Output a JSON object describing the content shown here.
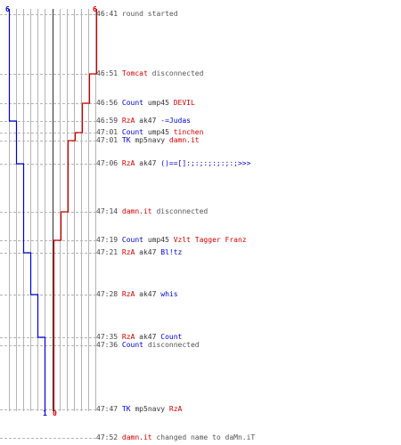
{
  "colors": {
    "blue": "#0000cc",
    "red": "#cc0000",
    "grey": "#444444",
    "grid": "#b4b4b4"
  },
  "score_markers": [
    {
      "id": "top-blue",
      "text": "6",
      "color": "#0000cc"
    },
    {
      "id": "top-red",
      "text": "6",
      "color": "#cc0000"
    },
    {
      "id": "bottom-blue",
      "text": "1",
      "color": "#0000cc"
    },
    {
      "id": "bottom-red",
      "text": "0",
      "color": "#cc0000"
    }
  ],
  "events": [
    {
      "time": "46:41",
      "parts": [
        {
          "text": "round started",
          "color": "#555555"
        }
      ]
    },
    {
      "time": "46:51",
      "parts": [
        {
          "text": "Tomcat",
          "color": "#cc0000"
        },
        {
          "text": " disconnected",
          "color": "#555555"
        }
      ]
    },
    {
      "time": "46:56",
      "parts": [
        {
          "text": "Count",
          "color": "#0000cc"
        },
        {
          "text": " ump45 ",
          "color": "#333333"
        },
        {
          "text": "DEVIL",
          "color": "#cc0000"
        }
      ]
    },
    {
      "time": "46:59",
      "parts": [
        {
          "text": "RzA",
          "color": "#cc0000"
        },
        {
          "text": " ak47 ",
          "color": "#333333"
        },
        {
          "text": "-=Judas",
          "color": "#0000cc"
        }
      ]
    },
    {
      "time": "47:01",
      "parts": [
        {
          "text": "Count",
          "color": "#0000cc"
        },
        {
          "text": " ump45 ",
          "color": "#333333"
        },
        {
          "text": "tinchen",
          "color": "#cc0000"
        }
      ]
    },
    {
      "time": "47:01",
      "parts": [
        {
          "text": "TK",
          "color": "#0000cc"
        },
        {
          "text": " mp5navy ",
          "color": "#333333"
        },
        {
          "text": "damn.it",
          "color": "#cc0000"
        }
      ]
    },
    {
      "time": "47:06",
      "parts": [
        {
          "text": "RzA",
          "color": "#cc0000"
        },
        {
          "text": " ak47 ",
          "color": "#333333"
        },
        {
          "text": "()==[]:;:;:;:;:;:;>>>",
          "color": "#0000cc"
        }
      ]
    },
    {
      "time": "47:14",
      "parts": [
        {
          "text": "damn.it",
          "color": "#cc0000"
        },
        {
          "text": " disconnected",
          "color": "#555555"
        }
      ]
    },
    {
      "time": "47:19",
      "parts": [
        {
          "text": "Count",
          "color": "#0000cc"
        },
        {
          "text": " ump45 ",
          "color": "#333333"
        },
        {
          "text": "Vzlt Tagger Franz",
          "color": "#cc0000"
        }
      ]
    },
    {
      "time": "47:21",
      "parts": [
        {
          "text": "RzA",
          "color": "#cc0000"
        },
        {
          "text": " ak47 ",
          "color": "#333333"
        },
        {
          "text": "Bl!tz",
          "color": "#0000cc"
        }
      ]
    },
    {
      "time": "47:28",
      "parts": [
        {
          "text": "RzA",
          "color": "#cc0000"
        },
        {
          "text": " ak47 ",
          "color": "#333333"
        },
        {
          "text": "whis",
          "color": "#0000cc"
        }
      ]
    },
    {
      "time": "47:35",
      "parts": [
        {
          "text": "RzA",
          "color": "#cc0000"
        },
        {
          "text": " ak47 ",
          "color": "#333333"
        },
        {
          "text": "Count",
          "color": "#0000cc"
        }
      ]
    },
    {
      "time": "47:36",
      "parts": [
        {
          "text": "Count",
          "color": "#0000cc"
        },
        {
          "text": " disconnected",
          "color": "#555555"
        }
      ]
    },
    {
      "time": "47:47",
      "parts": [
        {
          "text": "TK",
          "color": "#0000cc"
        },
        {
          "text": " mp5navy ",
          "color": "#333333"
        },
        {
          "text": "RzA",
          "color": "#cc0000"
        }
      ]
    },
    {
      "time": "47:52",
      "parts": [
        {
          "text": "damn.it",
          "color": "#cc0000"
        },
        {
          "text": " changed name to daMn.iT",
          "color": "#555555"
        }
      ]
    }
  ],
  "blue_alive": [
    6,
    6,
    6,
    5,
    5,
    5,
    4,
    4,
    4,
    3,
    2,
    1,
    1,
    1,
    1
  ],
  "red_alive": [
    6,
    5,
    4,
    4,
    3,
    2,
    2,
    1,
    0,
    0,
    0,
    0,
    0,
    0,
    0
  ]
}
